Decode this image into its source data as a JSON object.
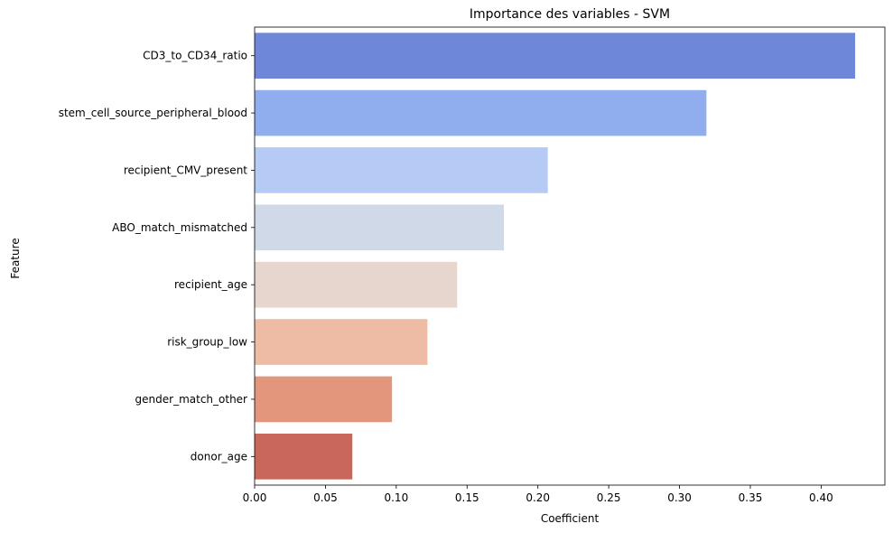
{
  "chart_data": {
    "type": "bar",
    "orientation": "horizontal",
    "title": "Importance des variables - SVM",
    "xlabel": "Coefficient",
    "ylabel": "Feature",
    "categories": [
      "CD3_to_CD34_ratio",
      "stem_cell_source_peripheral_blood",
      "recipient_CMV_present",
      "ABO_match_mismatched",
      "recipient_age",
      "risk_group_low",
      "gender_match_other",
      "donor_age"
    ],
    "values": [
      0.424,
      0.319,
      0.207,
      0.176,
      0.143,
      0.122,
      0.097,
      0.069
    ],
    "colors": [
      "#6f87d8",
      "#90aeee",
      "#b5caf4",
      "#d0d9e7",
      "#e6d6cd",
      "#eebca4",
      "#e2977d",
      "#c9675b"
    ],
    "xlim": [
      0,
      0.445
    ],
    "xticks": [
      "0.00",
      "0.05",
      "0.10",
      "0.15",
      "0.20",
      "0.25",
      "0.30",
      "0.35",
      "0.40"
    ],
    "xtick_values": [
      0,
      0.05,
      0.1,
      0.15,
      0.2,
      0.25,
      0.3,
      0.35,
      0.4
    ],
    "grid": false,
    "legend": "none"
  }
}
